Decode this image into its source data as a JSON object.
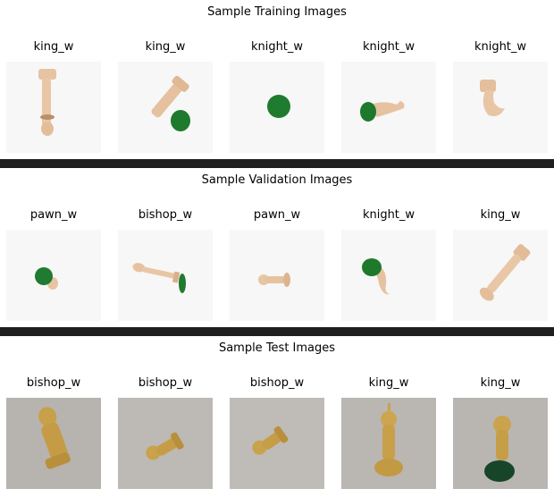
{
  "sections": [
    {
      "title": "Sample Training Images",
      "labels": [
        "king_w",
        "king_w",
        "knight_w",
        "knight_w",
        "knight_w"
      ]
    },
    {
      "title": "Sample Validation Images",
      "labels": [
        "pawn_w",
        "bishop_w",
        "pawn_w",
        "knight_w",
        "king_w"
      ]
    },
    {
      "title": "Sample Test Images",
      "labels": [
        "bishop_w",
        "bishop_w",
        "bishop_w",
        "king_w",
        "king_w"
      ]
    }
  ],
  "colors": {
    "background_dark": "#1f1f1f",
    "panel": "#ffffff",
    "piece_wood_light": "#e8c6a4",
    "piece_base_green": "#1f7a2e",
    "test_piece_wood": "#c9a24c",
    "test_background": "#b9b6b2"
  }
}
